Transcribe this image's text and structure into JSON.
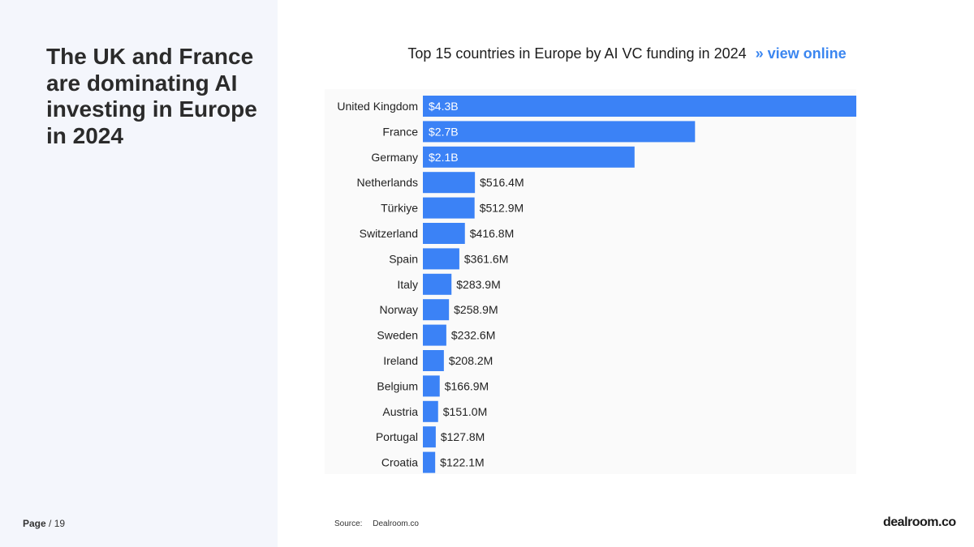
{
  "headline": "The UK and France are dominating AI investing in Europe in 2024",
  "page": {
    "label": "Page",
    "separator": "/",
    "number": "19"
  },
  "source": {
    "label": "Source:",
    "value": "Dealroom.co"
  },
  "logo": "dealroom.co",
  "colors": {
    "bar": "#3b82f6",
    "link": "#3b86f0",
    "panel": "#f4f6fc"
  },
  "chart_data": {
    "type": "bar",
    "orientation": "horizontal",
    "title": "Top 15 countries in Europe by AI VC funding in 2024",
    "title_link": "» view online",
    "xlabel": "",
    "ylabel": "",
    "grid": false,
    "units": "USD millions",
    "categories": [
      "United Kingdom",
      "France",
      "Germany",
      "Netherlands",
      "Türkiye",
      "Switzerland",
      "Spain",
      "Italy",
      "Norway",
      "Sweden",
      "Ireland",
      "Belgium",
      "Austria",
      "Portugal",
      "Croatia"
    ],
    "values": [
      4300,
      2700,
      2100,
      516.4,
      512.9,
      416.8,
      361.6,
      283.9,
      258.9,
      232.6,
      208.2,
      166.9,
      151.0,
      127.8,
      122.1
    ],
    "data_labels": [
      "$4.3B",
      "$2.7B",
      "$2.1B",
      "$516.4M",
      "$512.9M",
      "$416.8M",
      "$361.6M",
      "$283.9M",
      "$258.9M",
      "$232.6M",
      "$208.2M",
      "$166.9M",
      "$151.0M",
      "$127.8M",
      "$122.1M"
    ],
    "xlim": [
      0,
      4300
    ]
  }
}
